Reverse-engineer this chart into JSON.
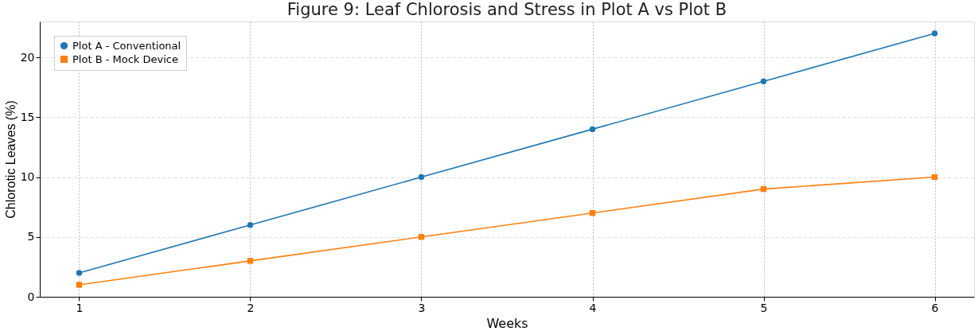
{
  "chart_data": {
    "type": "line",
    "title": "Figure 9: Leaf Chlorosis and Stress in Plot A vs Plot B",
    "xlabel": "Weeks",
    "ylabel": "Chlorotic Leaves (%)",
    "x": [
      1,
      2,
      3,
      4,
      5,
      6
    ],
    "series": [
      {
        "name": "Plot A - Conventional",
        "color": "#1f77b4",
        "marker": "circle",
        "values": [
          2,
          6,
          10,
          14,
          18,
          22
        ]
      },
      {
        "name": "Plot B - Mock Device",
        "color": "#ff7f0e",
        "marker": "square",
        "values": [
          1,
          3,
          5,
          7,
          9,
          10
        ]
      }
    ],
    "xlim": [
      0.77,
      6.23
    ],
    "xticks": [
      1,
      2,
      3,
      4,
      5,
      6
    ],
    "ylim": [
      0,
      23
    ],
    "yticks": [
      0,
      5,
      10,
      15,
      20
    ],
    "grid": true,
    "legend": "top left",
    "line_style": "solid"
  }
}
